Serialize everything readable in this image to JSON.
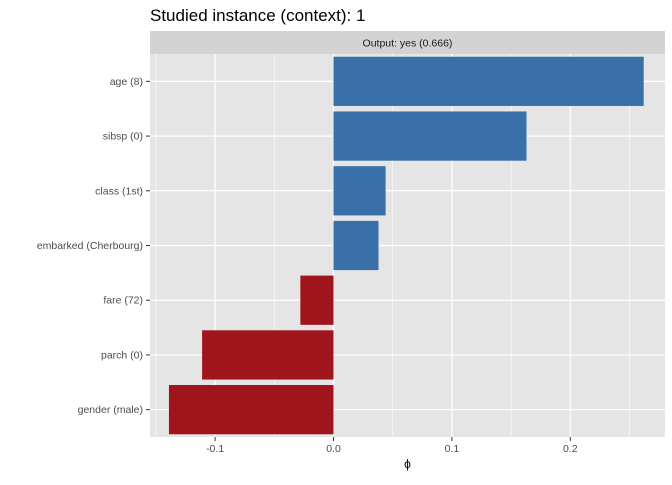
{
  "chart_data": {
    "type": "bar",
    "orientation": "horizontal",
    "title": "Studied instance (context): 1",
    "facet_label": "Output: yes (0.666)",
    "xlabel": "ϕ",
    "ylabel": "",
    "xlim": [
      -0.155,
      0.28
    ],
    "x_ticks": [
      -0.1,
      0.0,
      0.1,
      0.2
    ],
    "x_tick_labels": [
      "-0.1",
      "0.0",
      "0.1",
      "0.2"
    ],
    "grid": true,
    "legend": "none",
    "colors": {
      "positive": "#3a70aa",
      "negative": "#a0141c",
      "panel": "#e5e5e5",
      "strip": "#d3d3d3",
      "grid": "#ffffff"
    },
    "categories": [
      "age (8)",
      "sibsp (0)",
      "class (1st)",
      "embarked (Cherbourg)",
      "fare (72)",
      "parch (0)",
      "gender (male)"
    ],
    "values": [
      0.262,
      0.163,
      0.044,
      0.038,
      -0.028,
      -0.111,
      -0.139
    ]
  }
}
